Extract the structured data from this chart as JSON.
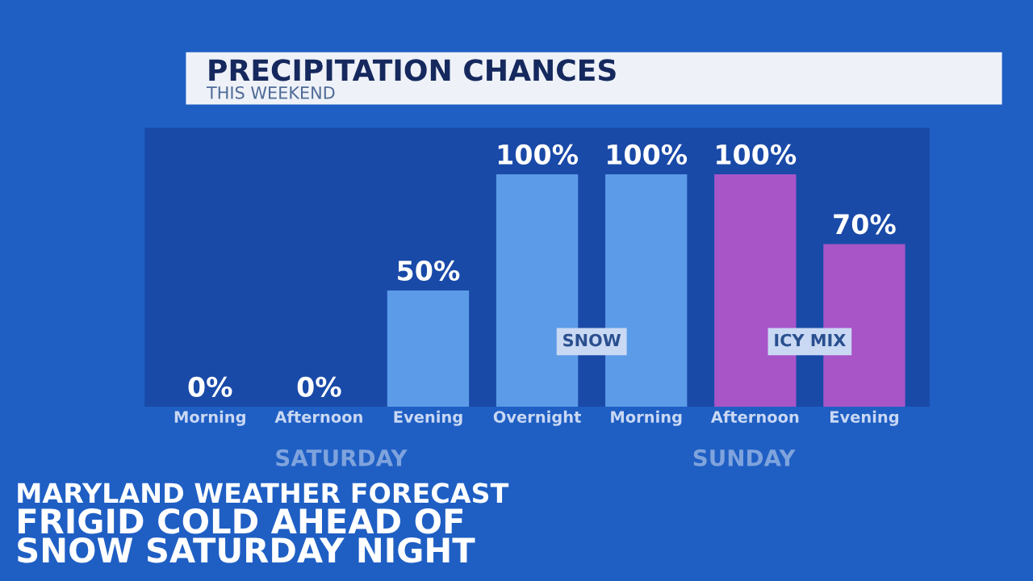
{
  "chart_data": {
    "type": "bar",
    "title": "PRECIPITATION CHANCES",
    "subtitle": "THIS WEEKEND",
    "categories": [
      "Morning",
      "Afternoon",
      "Evening",
      "Overnight",
      "Morning",
      "Afternoon",
      "Evening"
    ],
    "values": [
      0,
      0,
      50,
      100,
      100,
      100,
      70
    ],
    "colors": [
      "#5b9be8",
      "#5b9be8",
      "#5b9be8",
      "#5b9be8",
      "#5b9be8",
      "#a855c8",
      "#a855c8"
    ],
    "value_labels": [
      "0%",
      "0%",
      "50%",
      "100%",
      "100%",
      "100%",
      "70%"
    ],
    "annotations": [
      "SNOW",
      "ICY MIX",
      "SATURDAY",
      "SUNDAY",
      "MARYLAND WEATHER FORECAST",
      "FRIGID COLD AHEAD OF",
      "SNOW SATURDAY NIGHT"
    ],
    "grid": false,
    "legend": false
  }
}
